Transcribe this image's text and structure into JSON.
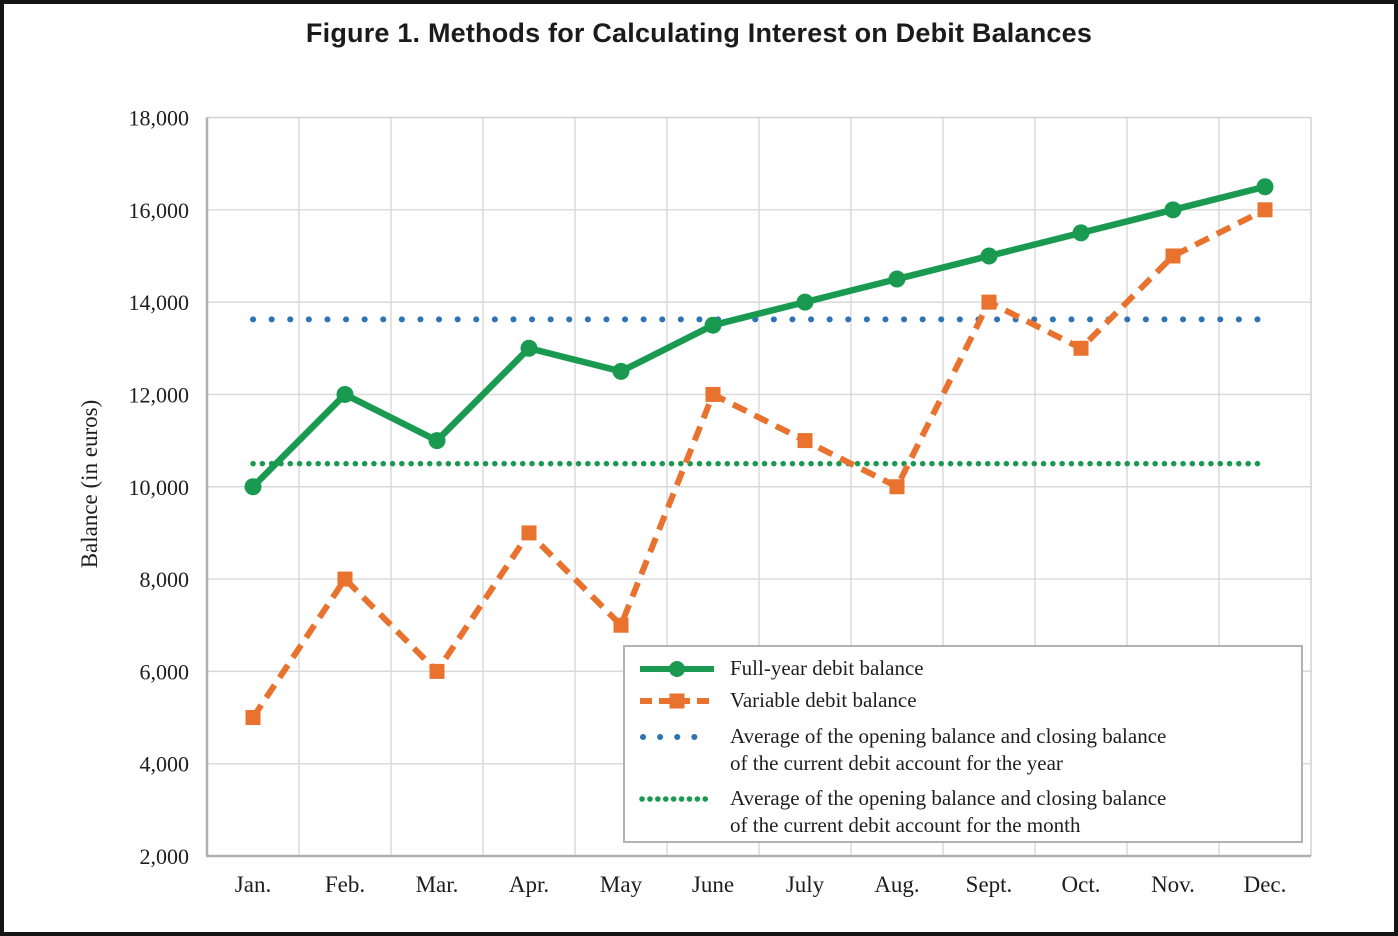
{
  "figure": {
    "title": "Figure 1. Methods for Calculating Interest on Debit Balances"
  },
  "axes": {
    "ylabel": "Balance (in euros)",
    "ytick_labels": [
      "2,000",
      "4,000",
      "6,000",
      "8,000",
      "10,000",
      "12,000",
      "14,000",
      "16,000",
      "18,000"
    ],
    "xtick_labels": [
      "Jan.",
      "Feb.",
      "Mar.",
      "Apr.",
      "May",
      "June",
      "July",
      "Aug.",
      "Sept.",
      "Oct.",
      "Nov.",
      "Dec."
    ]
  },
  "legend": {
    "items": [
      {
        "style": "solid",
        "marker": "circle",
        "color": "#1a9a50",
        "lines": [
          "Full-year debit balance"
        ]
      },
      {
        "style": "dashed",
        "marker": "square",
        "color": "#e8722e",
        "lines": [
          "Variable debit balance"
        ]
      },
      {
        "style": "dotted-sparse",
        "marker": "none",
        "color": "#2e74b5",
        "lines": [
          "Average of the opening balance and closing balance",
          "of the current debit account for the year"
        ]
      },
      {
        "style": "dotted-dense",
        "marker": "none",
        "color": "#1a9a50",
        "lines": [
          "Average of the opening balance and closing balance",
          "of the current debit account for the month"
        ]
      }
    ]
  },
  "colors": {
    "green": "#1a9a50",
    "orange": "#e8722e",
    "blue": "#2e74b5",
    "grid": "#d9d9d9",
    "frame": "#d2d2d2",
    "axis": "#b0b0b0",
    "text": "#1d1d1d",
    "legend_border": "#b2b2b2",
    "figure_border": "#151515"
  },
  "chart_data": {
    "type": "line",
    "title": "Figure 1. Methods for Calculating Interest on Debit Balances",
    "xlabel": "",
    "ylabel": "Balance (in euros)",
    "categories": [
      "Jan.",
      "Feb.",
      "Mar.",
      "Apr.",
      "May",
      "June",
      "July",
      "Aug.",
      "Sept.",
      "Oct.",
      "Nov.",
      "Dec."
    ],
    "ylim": [
      2000,
      18000
    ],
    "ytick_step": 2000,
    "grid": true,
    "legend_position": "inside-bottom-right",
    "series": [
      {
        "name": "Full-year debit balance",
        "kind": "line",
        "style": "solid",
        "marker": "circle",
        "color": "#1a9a50",
        "values": [
          10000,
          12000,
          11000,
          13000,
          12500,
          13500,
          14000,
          14500,
          15000,
          15500,
          16000,
          16500
        ]
      },
      {
        "name": "Variable debit balance",
        "kind": "line",
        "style": "dashed",
        "marker": "square",
        "color": "#e8722e",
        "values": [
          5000,
          8000,
          6000,
          9000,
          7000,
          12000,
          11000,
          10000,
          14000,
          13000,
          15000,
          16000
        ]
      },
      {
        "name": "Average of the opening balance and closing balance of the current debit account for the year",
        "kind": "reference-line",
        "style": "dotted-sparse",
        "color": "#2e74b5",
        "value": 13625
      },
      {
        "name": "Average of the opening balance and closing balance of the current debit account for the month",
        "kind": "reference-line",
        "style": "dotted-dense",
        "color": "#1a9a50",
        "value": 10500
      }
    ]
  }
}
